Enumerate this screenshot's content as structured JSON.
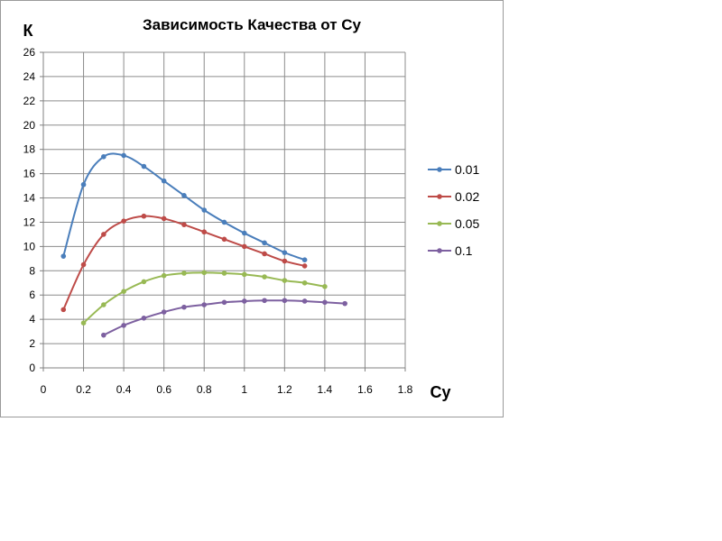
{
  "chart_data": {
    "type": "line",
    "title": "Зависимость Качества от Cy",
    "xlabel": "Cy",
    "ylabel": "К",
    "xlim": [
      0,
      1.8
    ],
    "ylim": [
      0,
      26
    ],
    "x_ticks": [
      "0",
      "0.2",
      "0.4",
      "0.6",
      "0.8",
      "1",
      "1.2",
      "1.4",
      "1.6",
      "1.8"
    ],
    "y_ticks": [
      "0",
      "2",
      "4",
      "6",
      "8",
      "10",
      "12",
      "14",
      "16",
      "18",
      "20",
      "22",
      "24",
      "26"
    ],
    "grid": true,
    "legend_position": "right",
    "smooth": true,
    "series": [
      {
        "name": "0.01",
        "color": "#4a7ebb",
        "x": [
          0.1,
          0.2,
          0.3,
          0.4,
          0.5,
          0.6,
          0.7,
          0.8,
          0.9,
          1.0,
          1.1,
          1.2,
          1.3
        ],
        "y": [
          9.2,
          15.1,
          17.4,
          17.5,
          16.6,
          15.4,
          14.2,
          13.0,
          12.0,
          11.1,
          10.3,
          9.5,
          8.9
        ]
      },
      {
        "name": "0.02",
        "color": "#be4b48",
        "x": [
          0.1,
          0.2,
          0.3,
          0.4,
          0.5,
          0.6,
          0.7,
          0.8,
          0.9,
          1.0,
          1.1,
          1.2,
          1.3
        ],
        "y": [
          4.8,
          8.5,
          11.0,
          12.1,
          12.5,
          12.3,
          11.8,
          11.2,
          10.6,
          10.0,
          9.4,
          8.8,
          8.4
        ]
      },
      {
        "name": "0.05",
        "color": "#98b954",
        "x": [
          0.2,
          0.3,
          0.4,
          0.5,
          0.6,
          0.7,
          0.8,
          0.9,
          1.0,
          1.1,
          1.2,
          1.3,
          1.4
        ],
        "y": [
          3.7,
          5.2,
          6.3,
          7.1,
          7.6,
          7.8,
          7.85,
          7.8,
          7.7,
          7.5,
          7.2,
          7.0,
          6.7
        ]
      },
      {
        "name": "0.1",
        "color": "#7d60a0",
        "x": [
          0.3,
          0.4,
          0.5,
          0.6,
          0.7,
          0.8,
          0.9,
          1.0,
          1.1,
          1.2,
          1.3,
          1.4,
          1.5
        ],
        "y": [
          2.7,
          3.5,
          4.1,
          4.6,
          5.0,
          5.2,
          5.4,
          5.5,
          5.55,
          5.55,
          5.5,
          5.4,
          5.3
        ]
      }
    ]
  }
}
